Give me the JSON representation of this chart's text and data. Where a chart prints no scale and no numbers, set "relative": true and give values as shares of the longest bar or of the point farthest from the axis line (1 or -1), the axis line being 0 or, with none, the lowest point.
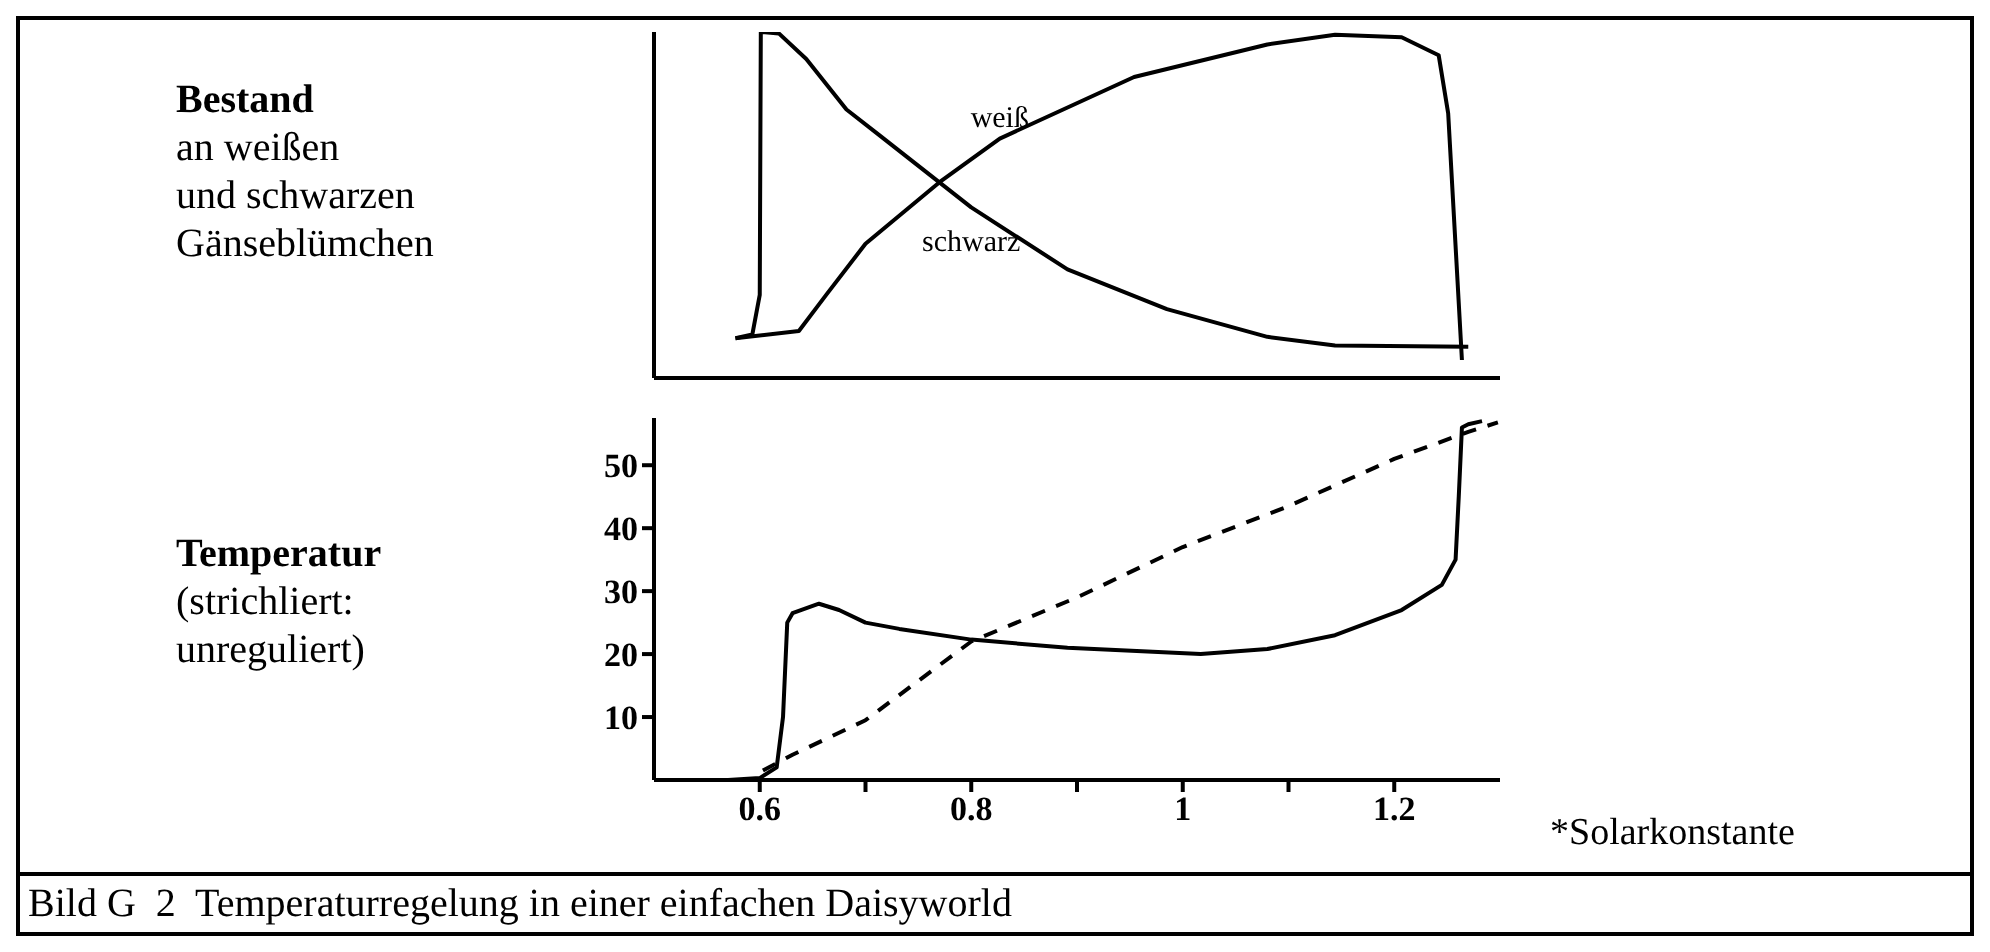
{
  "chart_data": [
    {
      "type": "line",
      "relative": true,
      "tick_labels": false,
      "ylabel": "Bestand\nan weißen\nund schwarzen\nGänseblümchen",
      "xlim": [
        0.5,
        1.3
      ],
      "series": [
        {
          "name": "weiß",
          "color": "#000000",
          "x": [
            0.577,
            0.637,
            0.663,
            0.7,
            0.77,
            0.827,
            0.954,
            1.08,
            1.144,
            1.207,
            1.242,
            1.251,
            1.264
          ],
          "values": [
            0.115,
            0.136,
            0.241,
            0.388,
            0.566,
            0.692,
            0.87,
            0.964,
            0.992,
            0.985,
            0.933,
            0.765,
            0.052
          ]
        },
        {
          "name": "schwarz",
          "color": "#000000",
          "x": [
            0.577,
            0.593,
            0.6,
            0.601,
            0.618,
            0.644,
            0.682,
            0.713,
            0.8,
            0.891,
            0.985,
            1.08,
            1.144,
            1.27
          ],
          "values": [
            0.115,
            0.126,
            0.24,
            1.0,
            0.996,
            0.922,
            0.776,
            0.702,
            0.493,
            0.314,
            0.199,
            0.119,
            0.094,
            0.09
          ]
        }
      ]
    },
    {
      "type": "line",
      "ylabel": "Temperatur\n(strichliert:\nunreguliert)",
      "xlabel": "*Solarkonstante",
      "xlim": [
        0.5,
        1.3
      ],
      "ylim": [
        0,
        57.5
      ],
      "xticks": [
        0.6,
        {
          "value": 0.7,
          "label": null
        },
        0.8,
        {
          "value": 0.9,
          "label": null
        },
        1.0,
        {
          "value": 1.1,
          "label": null
        },
        1.2
      ],
      "yticks": [
        10,
        20,
        30,
        40,
        50
      ],
      "annotations": [
        "Bild G  2  Temperaturregelung in einer einfachen Daisyworld"
      ],
      "series": [
        {
          "color": "#000000",
          "line_style": "solid",
          "x": [
            0.57,
            0.6,
            0.616,
            0.622,
            0.626,
            0.631,
            0.656,
            0.675,
            0.7,
            0.732,
            0.8,
            0.891,
            1.017,
            1.08,
            1.144,
            1.207,
            1.245,
            1.258,
            1.261,
            1.264,
            1.27,
            1.283
          ],
          "values": [
            0,
            0.3,
            2,
            10,
            25,
            26.5,
            28,
            27,
            25,
            24,
            22.3,
            21,
            20,
            20.8,
            23,
            27,
            31,
            35,
            45,
            56,
            56.5,
            57
          ]
        },
        {
          "color": "#000000",
          "line_style": "dashed",
          "x": [
            0.603,
            0.631,
            0.7,
            0.8,
            0.9,
            1.0,
            1.1,
            1.2,
            1.27,
            1.298
          ],
          "values": [
            1.5,
            4,
            9.5,
            22,
            29,
            37,
            43.5,
            51,
            55.3,
            56.8
          ]
        }
      ]
    }
  ]
}
